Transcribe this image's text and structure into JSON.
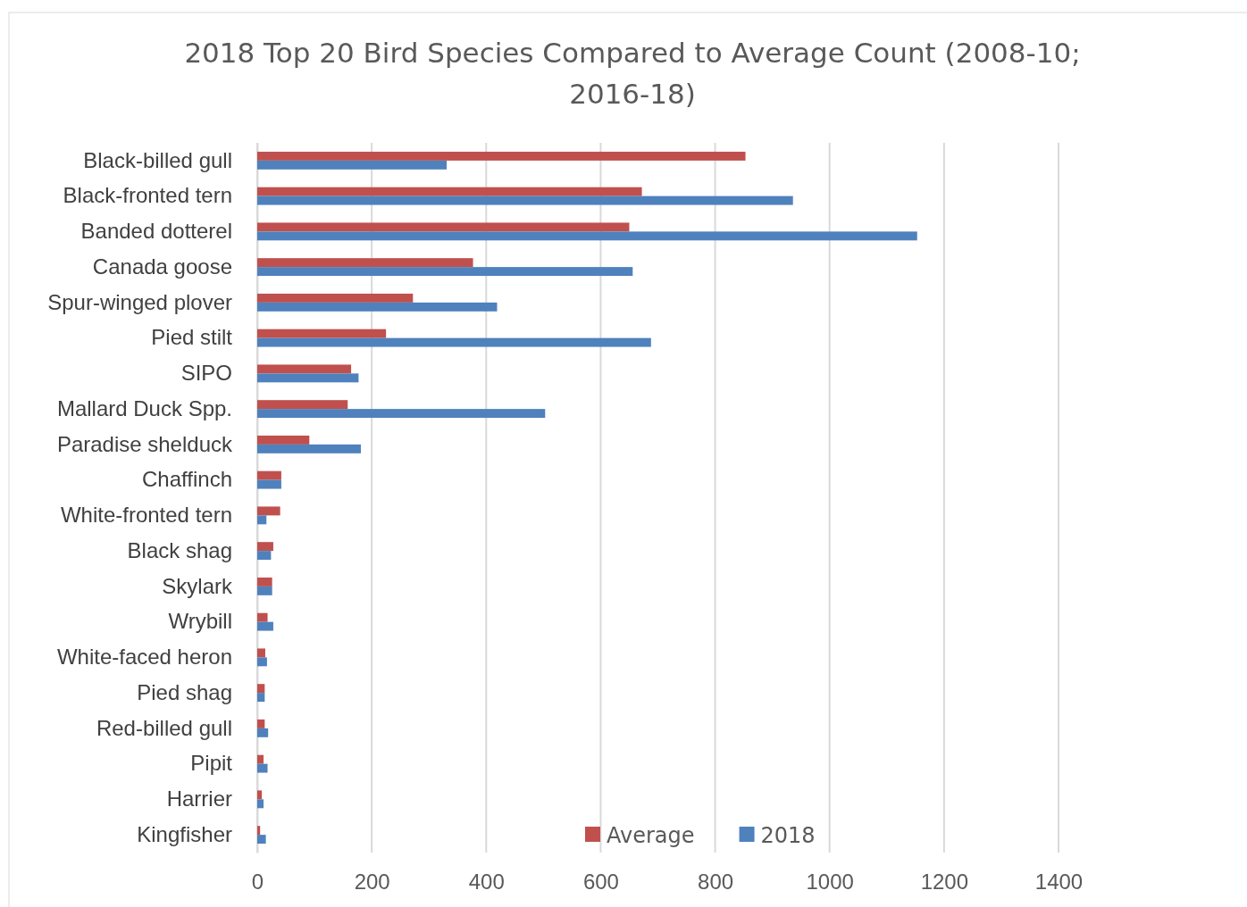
{
  "chart_data": {
    "type": "bar",
    "orientation": "horizontal",
    "title": "2018 Top 20 Bird Species Compared to Average Count (2008-10; 2016-18)",
    "categories": [
      "Black-billed gull",
      "Black-fronted tern",
      "Banded dotterel",
      "Canada goose",
      "Spur-winged plover",
      "Pied stilt",
      "SIPO",
      "Mallard Duck Spp.",
      "Paradise shelduck",
      "Chaffinch",
      "White-fronted tern",
      "Black shag",
      "Skylark",
      "Wrybill",
      "White-faced heron",
      "Pied shag",
      "Red-billed gull",
      "Pipit",
      "Harrier",
      "Kingfisher"
    ],
    "series": [
      {
        "name": "Average",
        "color": "#c0504d",
        "values": [
          853,
          672,
          650,
          377,
          272,
          225,
          164,
          158,
          91,
          42,
          40,
          28,
          26,
          18,
          14,
          13,
          13,
          11,
          8,
          5
        ]
      },
      {
        "name": "2018",
        "color": "#4f81bd",
        "values": [
          331,
          936,
          1153,
          656,
          419,
          688,
          177,
          503,
          181,
          42,
          16,
          24,
          26,
          28,
          17,
          13,
          19,
          18,
          11,
          15
        ]
      }
    ],
    "xlim": [
      0,
      1400
    ],
    "xticks": [
      0,
      200,
      400,
      600,
      800,
      1000,
      1200,
      1400
    ],
    "grid": "x",
    "legend": "bottom right"
  }
}
